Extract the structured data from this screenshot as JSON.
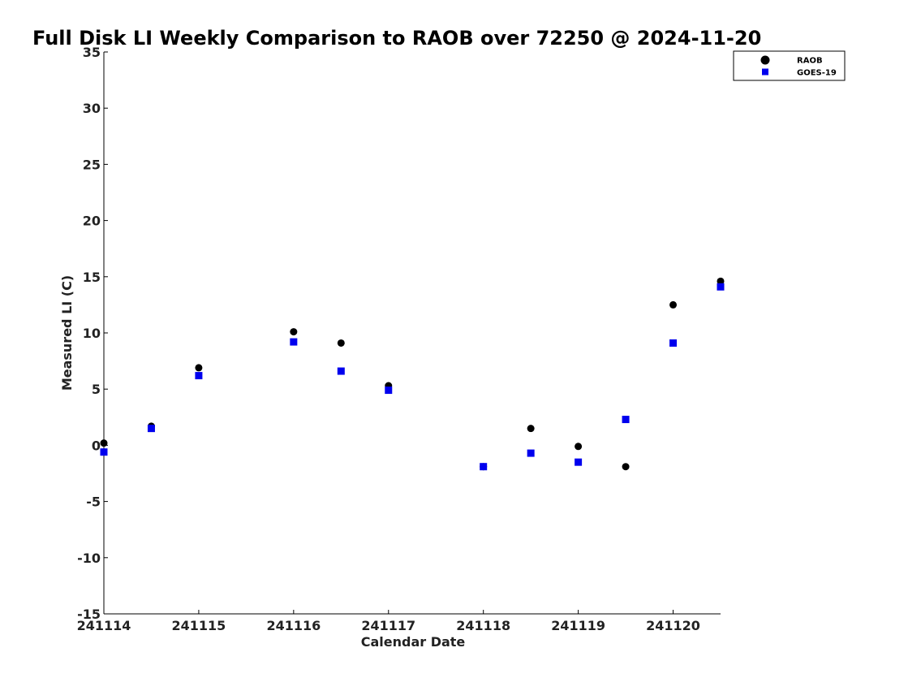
{
  "chart_data": {
    "type": "scatter",
    "title": "Full Disk LI Weekly Comparison to RAOB over 72250 @ 2024-11-20",
    "xlabel": "Calendar Date",
    "ylabel": "Measured LI (C)",
    "xlim": [
      "241114",
      "241120 12Z"
    ],
    "ylim": [
      -15,
      35
    ],
    "x_ticks": [
      "241114",
      "241115",
      "241116",
      "241117",
      "241118",
      "241119",
      "241120"
    ],
    "y_ticks": [
      -15,
      -10,
      -5,
      0,
      5,
      10,
      15,
      20,
      25,
      30,
      35
    ],
    "grid": false,
    "legend_position": "top-right",
    "series": [
      {
        "name": "RAOB",
        "marker": "circle",
        "color": "#000000",
        "points": [
          {
            "x": "241114 00Z",
            "y": 0.2
          },
          {
            "x": "241114 12Z",
            "y": 1.7
          },
          {
            "x": "241115 00Z",
            "y": 6.9
          },
          {
            "x": "241116 00Z",
            "y": 10.1
          },
          {
            "x": "241116 12Z",
            "y": 9.1
          },
          {
            "x": "241117 00Z",
            "y": 5.3
          },
          {
            "x": "241118 00Z",
            "y": -1.9
          },
          {
            "x": "241118 12Z",
            "y": 1.5
          },
          {
            "x": "241119 00Z",
            "y": -0.1
          },
          {
            "x": "241119 12Z",
            "y": -1.9
          },
          {
            "x": "241120 00Z",
            "y": 12.5
          },
          {
            "x": "241120 12Z",
            "y": 14.6
          }
        ]
      },
      {
        "name": "GOES-19",
        "marker": "square",
        "color": "#0000ee",
        "points": [
          {
            "x": "241114 00Z",
            "y": -0.6
          },
          {
            "x": "241114 12Z",
            "y": 1.5
          },
          {
            "x": "241115 00Z",
            "y": 6.2
          },
          {
            "x": "241116 00Z",
            "y": 9.2
          },
          {
            "x": "241116 12Z",
            "y": 6.6
          },
          {
            "x": "241117 00Z",
            "y": 4.9
          },
          {
            "x": "241118 00Z",
            "y": -1.9
          },
          {
            "x": "241118 12Z",
            "y": -0.7
          },
          {
            "x": "241119 00Z",
            "y": -1.5
          },
          {
            "x": "241119 12Z",
            "y": 2.3
          },
          {
            "x": "241120 00Z",
            "y": 9.1
          },
          {
            "x": "241120 12Z",
            "y": 14.1
          }
        ]
      }
    ]
  }
}
